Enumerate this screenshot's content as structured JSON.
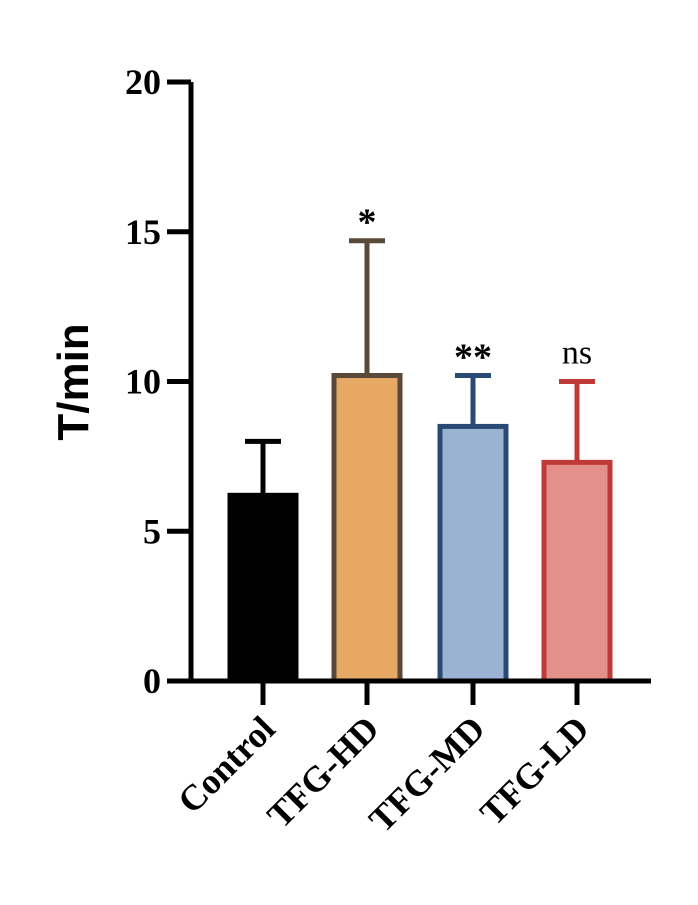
{
  "chart_data": {
    "type": "bar",
    "title": "",
    "xlabel": "",
    "ylabel": "T/min",
    "ylim": [
      0,
      20
    ],
    "yticks": [
      "0",
      "5",
      "10",
      "15",
      "20"
    ],
    "ytick_values": [
      0,
      5,
      10,
      15,
      20
    ],
    "grid": false,
    "categories": [
      "Control",
      "TFG-HD",
      "TFG-MD",
      "TFG-LD"
    ],
    "values": [
      6.2,
      10.2,
      8.5,
      7.3
    ],
    "error_upper": [
      8.0,
      14.7,
      10.2,
      10.0
    ],
    "significance": [
      "",
      "*",
      "**",
      "ns"
    ],
    "fill_colors": [
      "#000000",
      "#e6a862",
      "#9bb3d3",
      "#e4908a"
    ],
    "edge_colors": [
      "#000000",
      "#5a4838",
      "#284a75",
      "#bf3a36"
    ]
  }
}
